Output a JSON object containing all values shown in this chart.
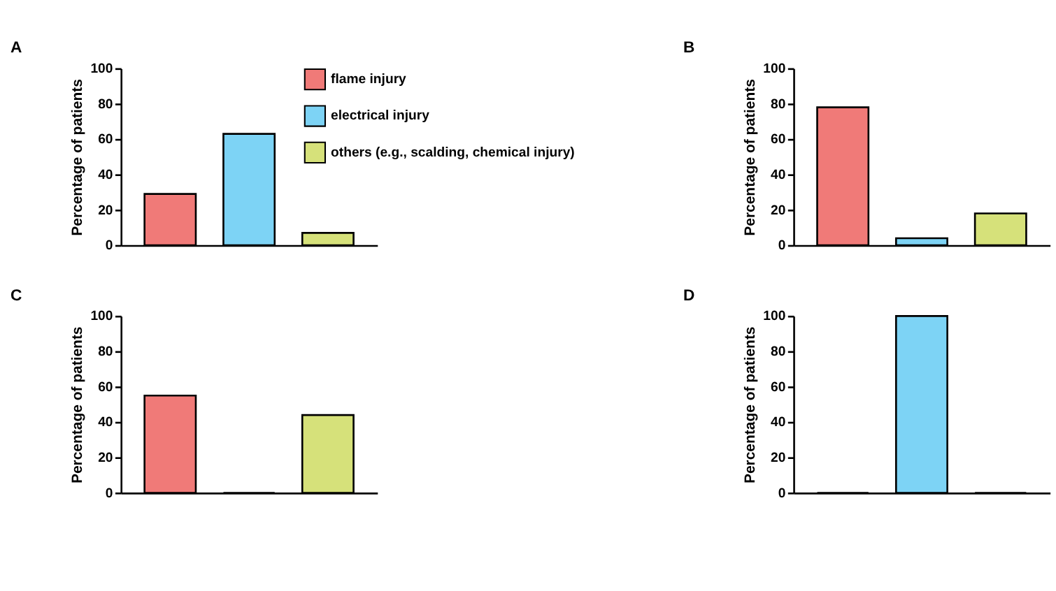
{
  "chart_data": [
    {
      "type": "bar",
      "title": "A",
      "ylabel": "Percentage of patients",
      "categories": [
        null,
        null,
        null
      ],
      "ylim": [
        0,
        100
      ],
      "yticks": [
        0,
        20,
        40,
        60,
        80,
        100
      ],
      "grid": false,
      "tick_labels": "y",
      "legend": "top right",
      "series": [
        {
          "name": "flame injury",
          "color": "#f07a78",
          "values": [
            29,
            null,
            null
          ]
        },
        {
          "name": "electrical injury",
          "color": "#7dd3f5",
          "values": [
            null,
            63,
            null
          ]
        },
        {
          "name": "others (e.g., scalding, chemical injury)",
          "color": "#d6e17a",
          "values": [
            null,
            null,
            7.0
          ]
        }
      ]
    },
    {
      "type": "bar",
      "title": "B",
      "ylabel": "Percentage of patients",
      "categories": [
        null,
        null,
        null
      ],
      "ylim": [
        0,
        100
      ],
      "yticks": [
        0,
        20,
        40,
        60,
        80,
        100
      ],
      "grid": false,
      "tick_labels": "y",
      "series": [
        {
          "color": "#f07a78",
          "values": [
            78,
            null,
            null
          ]
        },
        {
          "color": "#7dd3f5",
          "values": [
            null,
            4,
            null
          ]
        },
        {
          "color": "#d6e17a",
          "values": [
            null,
            null,
            18.0
          ]
        }
      ]
    },
    {
      "type": "bar",
      "title": "C",
      "ylabel": "Percentage of patients",
      "categories": [
        null,
        null,
        null
      ],
      "ylim": [
        0,
        100
      ],
      "yticks": [
        0,
        20,
        40,
        60,
        80,
        100
      ],
      "grid": false,
      "tick_labels": "y",
      "series": [
        {
          "color": "#f07a78",
          "values": [
            55.0,
            null,
            null
          ]
        },
        {
          "color": "#7dd3f5",
          "values": [
            null,
            0,
            null
          ]
        },
        {
          "color": "#d6e17a",
          "values": [
            null,
            null,
            44.0
          ]
        }
      ]
    },
    {
      "type": "bar",
      "title": "D",
      "ylabel": "Percentage of patients",
      "categories": [
        null,
        null,
        null
      ],
      "ylim": [
        0,
        100
      ],
      "yticks": [
        0,
        20,
        40,
        60,
        80,
        100
      ],
      "grid": false,
      "tick_labels": "y",
      "series": [
        {
          "color": "#f07a78",
          "values": [
            0,
            null,
            null
          ]
        },
        {
          "color": "#7dd3f5",
          "values": [
            null,
            100,
            null
          ]
        },
        {
          "color": "#d6e17a",
          "values": [
            null,
            null,
            0
          ]
        }
      ]
    }
  ]
}
